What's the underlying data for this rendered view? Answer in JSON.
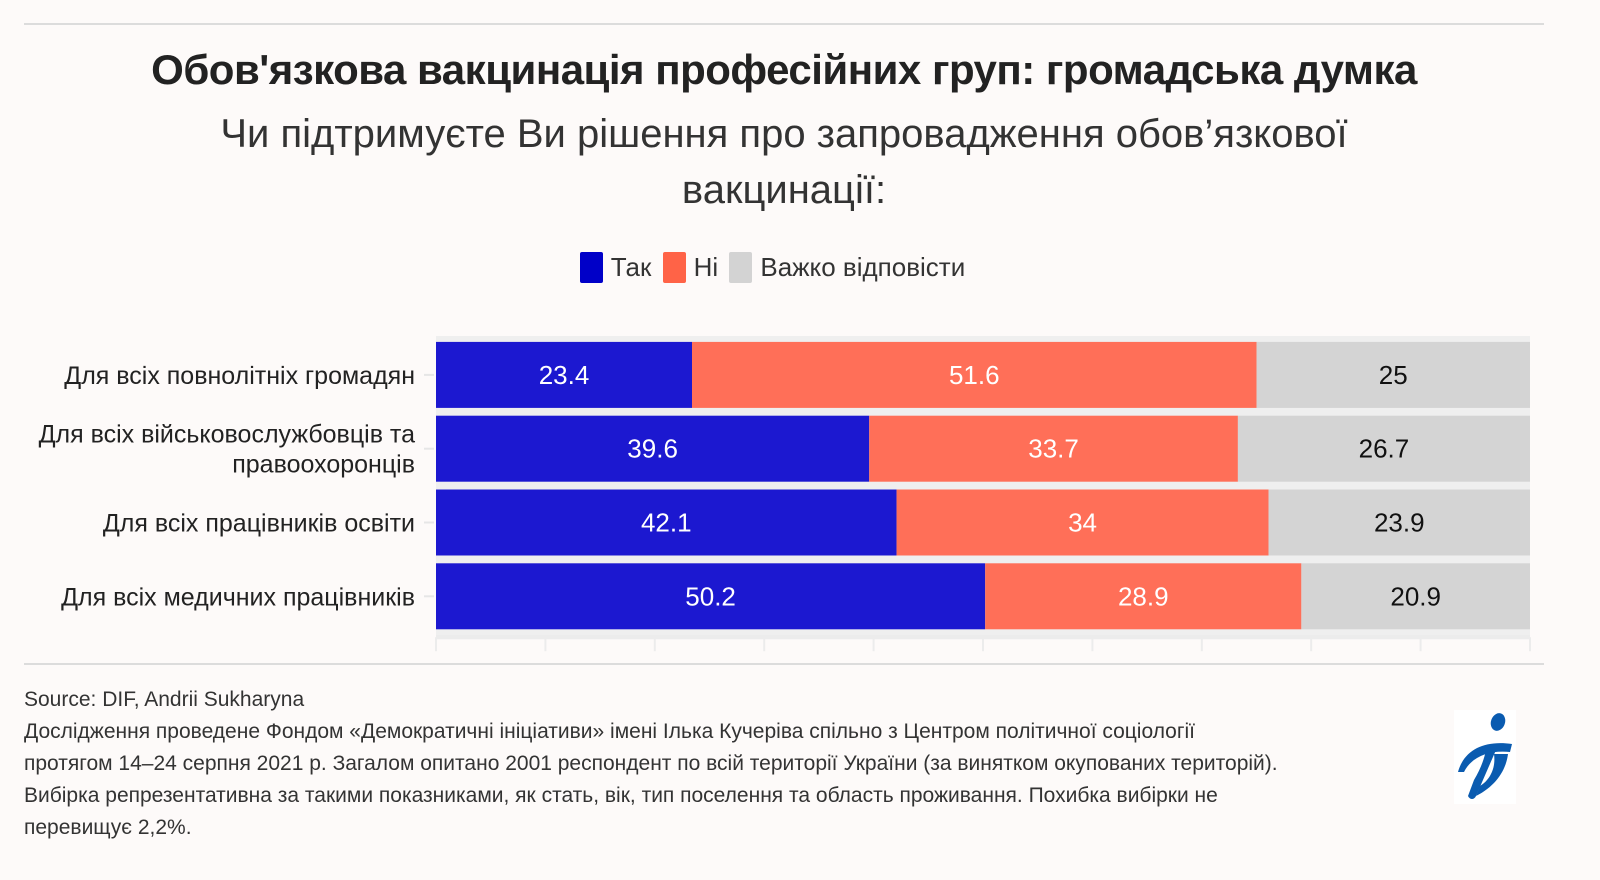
{
  "header": {
    "title": "Обов'язкова вакцинація професійних груп: громадська думка",
    "subtitle": "Чи підтримуєте Ви рішення про запровадження обов’язкової вакцинації:"
  },
  "legend": [
    {
      "label": "Так",
      "color": "#0000c8"
    },
    {
      "label": "Ні",
      "color": "#ff6347"
    },
    {
      "label": "Важко відповісти",
      "color": "#d3d3d3"
    }
  ],
  "chart_data": {
    "type": "bar",
    "orientation": "horizontal",
    "stacked": true,
    "title": "Обов'язкова вакцинація професійних груп: громадська думка",
    "subtitle": "Чи підтримуєте Ви рішення про запровадження обов’язкової вакцинації:",
    "xlabel": "",
    "ylabel": "",
    "xlim": [
      0,
      100
    ],
    "x_ticks_every": 10,
    "x_tick_labels_shown": false,
    "grid": false,
    "legend_position": "top-center",
    "categories": [
      [
        "Для всіх повнолітніх громадян"
      ],
      [
        "Для всіх військовослужбовців та",
        "правоохоронців"
      ],
      [
        "Для всіх працівників освіти"
      ],
      [
        "Для всіх медичних працівників"
      ]
    ],
    "series": [
      {
        "name": "Так",
        "color": "#1c18d0",
        "label_color": "#ffffff",
        "values": [
          23.4,
          39.6,
          42.1,
          50.2
        ],
        "labels": [
          "23.4",
          "39.6",
          "42.1",
          "50.2"
        ]
      },
      {
        "name": "Ні",
        "color": "#ff6f58",
        "label_color": "#ffffff",
        "values": [
          51.6,
          33.7,
          34,
          28.9
        ],
        "labels": [
          "51.6",
          "33.7",
          "34",
          "28.9"
        ]
      },
      {
        "name": "Важко відповісти",
        "color": "#d4d4d4",
        "label_color": "#111111",
        "values": [
          25,
          26.7,
          23.9,
          20.9
        ],
        "labels": [
          "25",
          "26.7",
          "23.9",
          "20.9"
        ]
      }
    ]
  },
  "footer": {
    "source": "Source: DIF, Andrii Sukharyna",
    "note_lines": [
      "Дослідження проведене Фондом «Демократичні ініціативи» імені Ілька Кучеріва спільно з Центром політичної соціології",
      "протягом 14–24 серпня 2021 р. Загалом опитано 2001 респондент по всій території України (за винятком окупованих територій).",
      "Вибірка репрезентативна за такими показниками, як стать, вік, тип поселення та область проживання. Похибка вибірки не",
      "перевищує 2,2%."
    ],
    "logo_icon": "dif-logo-icon",
    "logo_color": "#0a5bb0"
  }
}
